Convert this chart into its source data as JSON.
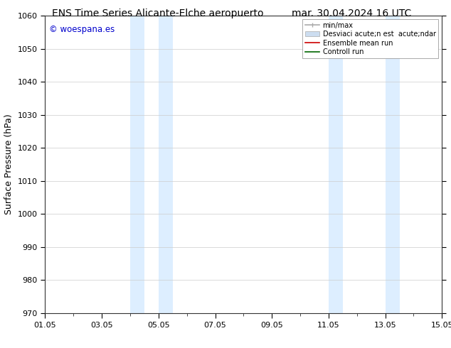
{
  "title_left": "ENS Time Series Alicante-Elche aeropuerto",
  "title_right": "mar. 30.04.2024 16 UTC",
  "ylabel": "Surface Pressure (hPa)",
  "ylim": [
    970,
    1060
  ],
  "yticks": [
    970,
    980,
    990,
    1000,
    1010,
    1020,
    1030,
    1040,
    1050,
    1060
  ],
  "xtick_labels": [
    "01.05",
    "03.05",
    "05.05",
    "07.05",
    "09.05",
    "11.05",
    "13.05",
    "15.05"
  ],
  "xtick_positions": [
    0,
    2,
    4,
    6,
    8,
    10,
    12,
    14
  ],
  "xlim": [
    0,
    14
  ],
  "shaded_regions": [
    {
      "xmin": 3.0,
      "xmax": 3.5,
      "color": "#ddeeff"
    },
    {
      "xmin": 4.0,
      "xmax": 4.5,
      "color": "#ddeeff"
    },
    {
      "xmin": 10.0,
      "xmax": 10.5,
      "color": "#ddeeff"
    },
    {
      "xmin": 12.0,
      "xmax": 12.5,
      "color": "#ddeeff"
    }
  ],
  "watermark_text": "© woespana.es",
  "watermark_color": "#0000cc",
  "legend_entries": [
    {
      "label": "min/max",
      "color": "#aaaaaa",
      "lw": 1.2
    },
    {
      "label": "Desviaci acute;n est  acute;ndar",
      "color": "#ccddf0",
      "lw": 6
    },
    {
      "label": "Ensemble mean run",
      "color": "#cc0000",
      "lw": 1.2
    },
    {
      "label": "Controll run",
      "color": "#006600",
      "lw": 1.2
    }
  ],
  "bg_color": "#ffffff",
  "grid_color": "#cccccc",
  "title_fontsize": 10,
  "axis_fontsize": 9,
  "tick_fontsize": 8,
  "minor_tick_positions": [
    1,
    3,
    5,
    7,
    9,
    11,
    13
  ]
}
